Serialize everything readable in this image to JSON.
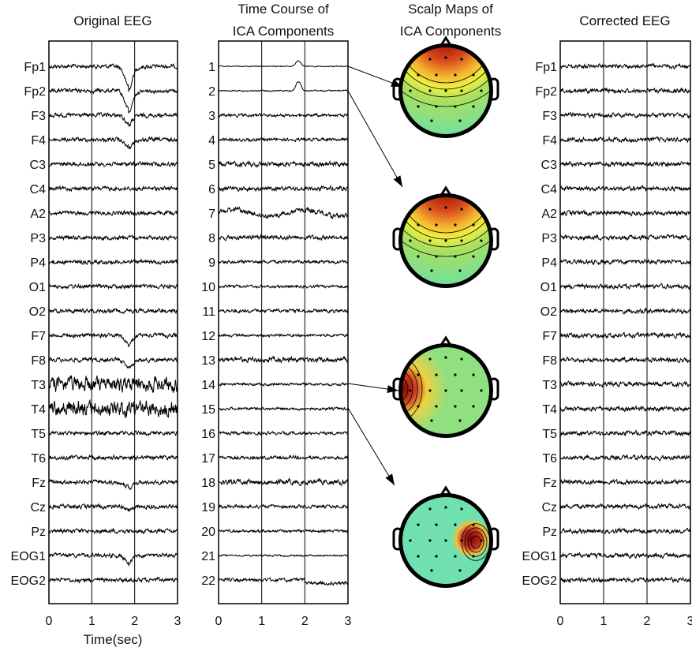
{
  "chart_data": {
    "type": "line",
    "panels": [
      {
        "id": "original",
        "title": "Original EEG",
        "xlabel": "Time(sec)",
        "xlim": [
          0,
          3
        ],
        "xticks": [
          "0",
          "1",
          "2",
          "3"
        ],
        "channels": [
          "Fp1",
          "Fp2",
          "F3",
          "F4",
          "C3",
          "C4",
          "A2",
          "P3",
          "P4",
          "O1",
          "O2",
          "F7",
          "F8",
          "T3",
          "T4",
          "T5",
          "T6",
          "Fz",
          "Cz",
          "Pz",
          "EOG1",
          "EOG2"
        ]
      },
      {
        "id": "ica",
        "title_lines": [
          "Time Course of",
          "ICA Components"
        ],
        "xlim": [
          0,
          3
        ],
        "xticks": [
          "0",
          "1",
          "2",
          "3"
        ],
        "channels": [
          "1",
          "2",
          "3",
          "4",
          "5",
          "6",
          "7",
          "8",
          "9",
          "10",
          "11",
          "12",
          "13",
          "14",
          "15",
          "16",
          "17",
          "18",
          "19",
          "20",
          "21",
          "22"
        ]
      },
      {
        "id": "corrected",
        "title": "Corrected EEG",
        "xlim": [
          0,
          3
        ],
        "xticks": [
          "0",
          "1",
          "2",
          "3"
        ],
        "channels": [
          "Fp1",
          "Fp2",
          "F3",
          "F4",
          "C3",
          "C4",
          "A2",
          "P3",
          "P4",
          "O1",
          "O2",
          "F7",
          "F8",
          "T3",
          "T4",
          "T5",
          "T6",
          "Fz",
          "Cz",
          "Pz",
          "EOG1",
          "EOG2"
        ]
      }
    ],
    "scalp_maps": {
      "title_lines": [
        "Scalp Maps of",
        "ICA Components"
      ],
      "maps": [
        {
          "component": 1,
          "pattern": "frontal"
        },
        {
          "component": 2,
          "pattern": "frontal"
        },
        {
          "component": 14,
          "pattern": "left-temporal"
        },
        {
          "component": 15,
          "pattern": "right-temporal"
        }
      ]
    },
    "artifact_time_sec": 1.8
  }
}
